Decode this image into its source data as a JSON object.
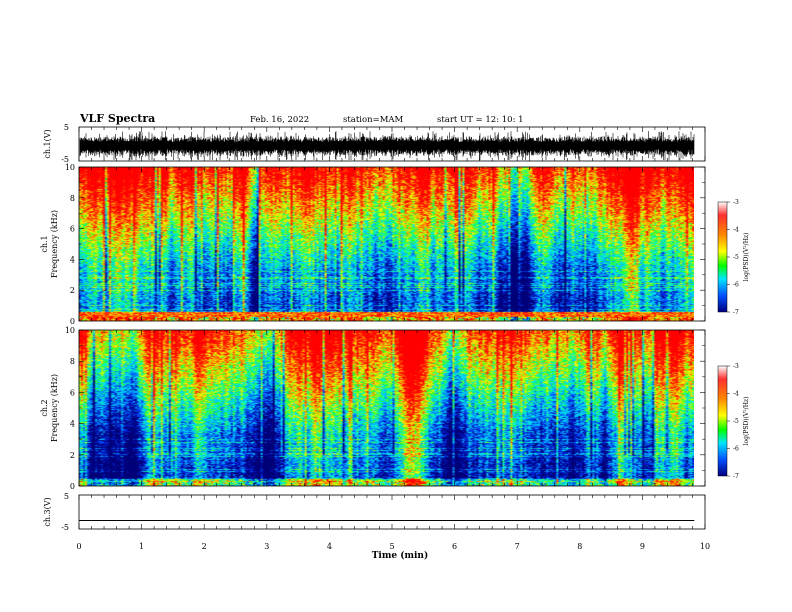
{
  "header": {
    "title": "VLF Spectra",
    "date": "Feb. 16, 2022",
    "station": "station=MAM",
    "start_time": "start  UT =   12: 10: 1"
  },
  "colorbar": {
    "label": "log(PSD)(V²/Hz)",
    "ticks": [
      "-3",
      "-4",
      "-5",
      "-6",
      "-7"
    ],
    "colors": [
      "#ff0000",
      "#ff8800",
      "#ffff00",
      "#00ff00",
      "#00ffff",
      "#0066ff",
      "#00008b"
    ]
  },
  "chart_data": [
    {
      "type": "line",
      "name": "ch1-waveform",
      "ylabel": "ch.1(V)",
      "ylim": [
        -5,
        5
      ],
      "y_ticklabels": [
        "5",
        "-5"
      ],
      "xlim": [
        0,
        10
      ],
      "data_extent_min": 9.83,
      "description_amplitude": "noise band roughly -3 to 2 V"
    },
    {
      "type": "heatmap",
      "name": "ch1-spectrogram",
      "ylabel": "Frequency (kHz)",
      "channel_label": "ch.1",
      "ylim": [
        0,
        10
      ],
      "y_ticklabels": [
        "0",
        "2",
        "4",
        "6",
        "8",
        "10"
      ],
      "xlim": [
        0,
        10
      ],
      "data_extent_min": 9.83
    },
    {
      "type": "heatmap",
      "name": "ch2-spectrogram",
      "ylabel": "Frequency (kHz)",
      "channel_label": "ch.2",
      "ylim": [
        0,
        10
      ],
      "y_ticklabels": [
        "0",
        "2",
        "4",
        "6",
        "8",
        "10"
      ],
      "xlim": [
        0,
        10
      ],
      "data_extent_min": 9.83
    },
    {
      "type": "line",
      "name": "ch3-waveform",
      "ylabel": "ch.3(V)",
      "ylim": [
        -5,
        5
      ],
      "y_ticklabels": [
        "5",
        "-5"
      ],
      "xlim": [
        0,
        10
      ],
      "x": [
        0,
        9.83
      ],
      "y": [
        -2.5,
        -2.5
      ]
    }
  ],
  "xaxis": {
    "label": "Time (min)",
    "ticks": [
      "0",
      "1",
      "2",
      "3",
      "4",
      "5",
      "6",
      "7",
      "8",
      "9",
      "10"
    ]
  }
}
